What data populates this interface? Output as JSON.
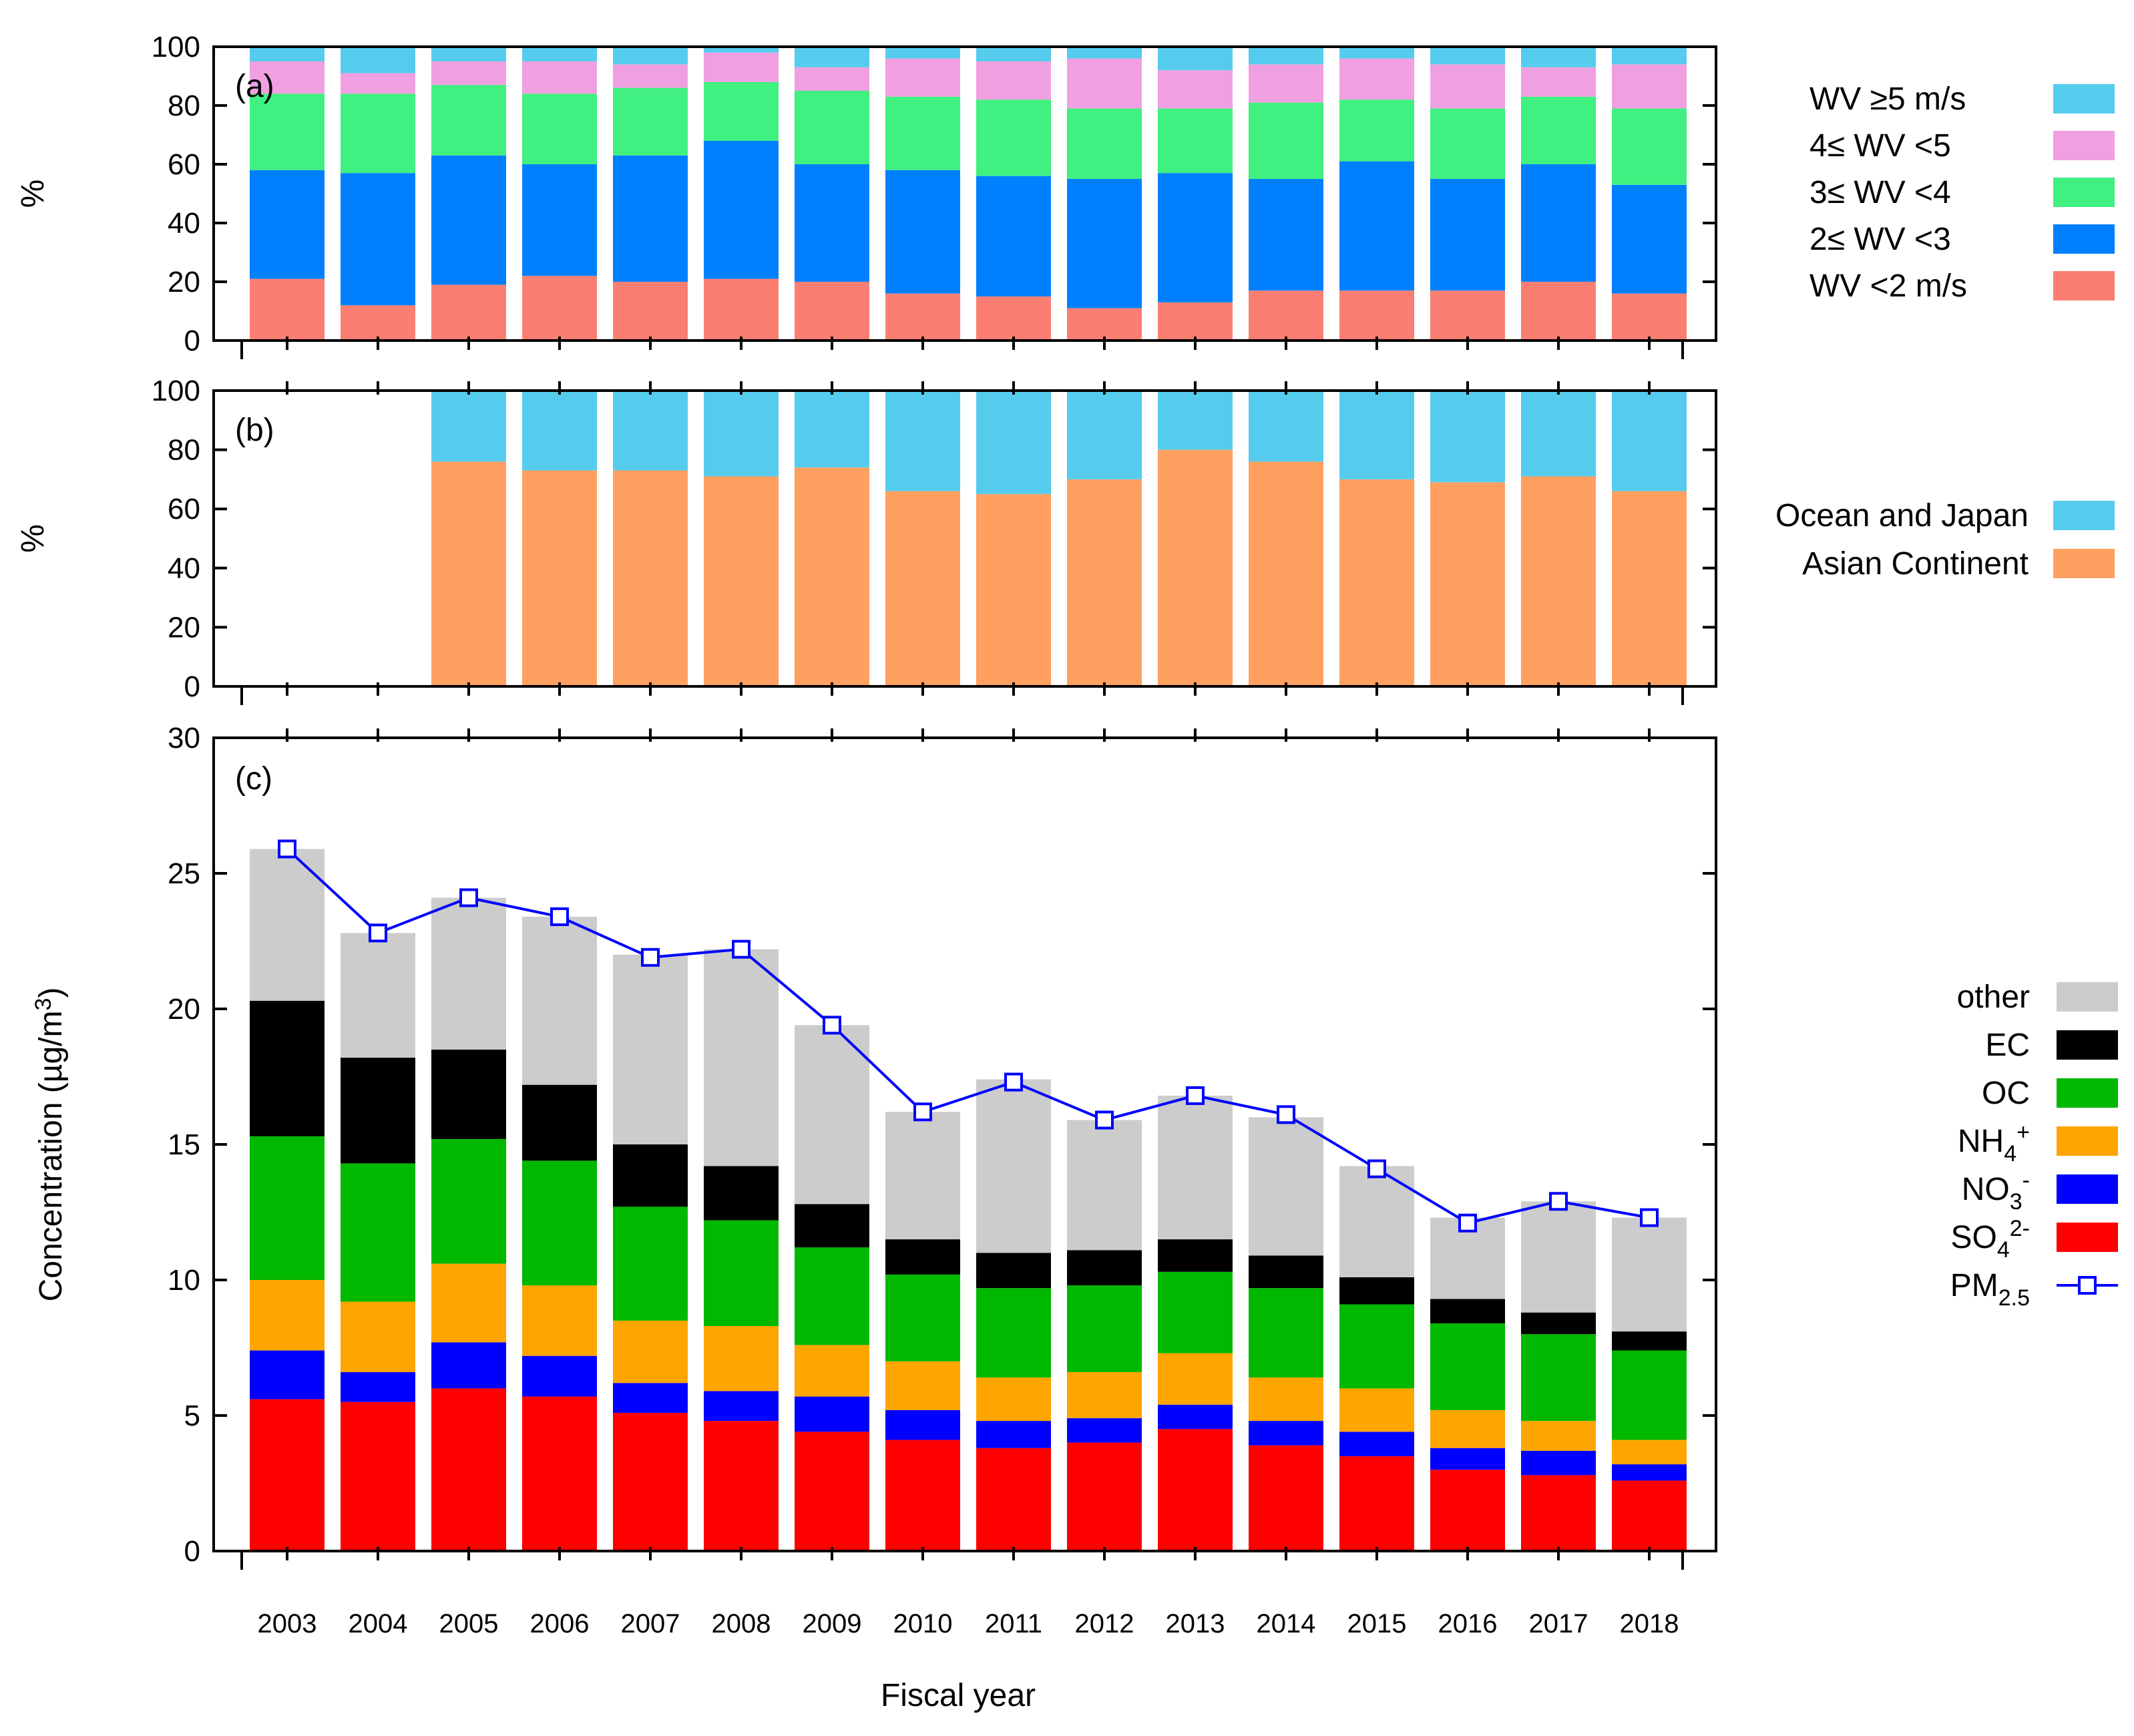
{
  "x_title": "Fiscal year",
  "chart_data": [
    {
      "type": "bar",
      "stacked": true,
      "panel_label": "(a)",
      "ylabel": "%",
      "ylim": [
        0,
        100
      ],
      "yticks": [
        "0",
        "20",
        "40",
        "60",
        "80",
        "100"
      ],
      "categories": [
        "2003",
        "2004",
        "2005",
        "2006",
        "2007",
        "2008",
        "2009",
        "2010",
        "2011",
        "2012",
        "2013",
        "2014",
        "2015",
        "2016",
        "2017",
        "2018"
      ],
      "series": [
        {
          "name": "WV <2 m/s",
          "color": "#fa7f72",
          "values": [
            21,
            12,
            19,
            22,
            20,
            21,
            20,
            16,
            15,
            11,
            13,
            17,
            17,
            17,
            20,
            16
          ]
        },
        {
          "name": "2≤ WV <3",
          "color": "#0080ff",
          "values": [
            37,
            45,
            44,
            38,
            43,
            47,
            40,
            42,
            41,
            44,
            44,
            38,
            44,
            38,
            40,
            37
          ]
        },
        {
          "name": "3≤ WV <4",
          "color": "#40f080",
          "values": [
            26,
            27,
            24,
            24,
            23,
            20,
            25,
            25,
            26,
            24,
            22,
            26,
            21,
            24,
            23,
            26
          ]
        },
        {
          "name": "4≤ WV <5",
          "color": "#f0a0e0",
          "values": [
            11,
            7,
            8,
            11,
            8,
            10,
            8,
            13,
            13,
            17,
            13,
            13,
            14,
            15,
            10,
            15
          ]
        },
        {
          "name": "WV ≥5 m/s",
          "color": "#55ccee",
          "values": [
            5,
            9,
            5,
            5,
            6,
            2,
            7,
            4,
            5,
            4,
            8,
            6,
            4,
            6,
            7,
            6
          ]
        }
      ]
    },
    {
      "type": "bar",
      "stacked": true,
      "panel_label": "(b)",
      "ylabel": "%",
      "ylim": [
        0,
        100
      ],
      "yticks": [
        "0",
        "20",
        "40",
        "60",
        "80",
        "100"
      ],
      "categories": [
        "2003",
        "2004",
        "2005",
        "2006",
        "2007",
        "2008",
        "2009",
        "2010",
        "2011",
        "2012",
        "2013",
        "2014",
        "2015",
        "2016",
        "2017",
        "2018"
      ],
      "series": [
        {
          "name": "Asian Continent",
          "color": "#ffa060",
          "values": [
            0,
            0,
            76,
            73,
            73,
            71,
            74,
            66,
            65,
            70,
            80,
            76,
            70,
            69,
            71,
            66
          ]
        },
        {
          "name": "Ocean and Japan",
          "color": "#55ccee",
          "values": [
            0,
            0,
            24,
            27,
            27,
            29,
            26,
            34,
            35,
            30,
            20,
            24,
            30,
            31,
            29,
            34
          ]
        }
      ]
    },
    {
      "type": "bar+line",
      "stacked": true,
      "panel_label": "(c)",
      "ylabel": "Concentration (µg/m³)",
      "ylim": [
        0,
        30
      ],
      "yticks": [
        "0",
        "5",
        "10",
        "15",
        "20",
        "25",
        "30"
      ],
      "categories": [
        "2003",
        "2004",
        "2005",
        "2006",
        "2007",
        "2008",
        "2009",
        "2010",
        "2011",
        "2012",
        "2013",
        "2014",
        "2015",
        "2016",
        "2017",
        "2018"
      ],
      "series": [
        {
          "name": "SO4 2-",
          "label": {
            "base": "SO",
            "sub": "4",
            "sup": "2-"
          },
          "color": "#ff0000",
          "values": [
            5.6,
            5.5,
            6.0,
            5.7,
            5.1,
            4.8,
            4.4,
            4.1,
            3.8,
            4.0,
            4.5,
            3.9,
            3.5,
            3.0,
            2.8,
            2.6
          ]
        },
        {
          "name": "NO3 -",
          "label": {
            "base": "NO",
            "sub": "3",
            "sup": "-"
          },
          "color": "#0000ff",
          "values": [
            1.8,
            1.1,
            1.7,
            1.5,
            1.1,
            1.1,
            1.3,
            1.1,
            1.0,
            0.9,
            0.9,
            0.9,
            0.9,
            0.8,
            0.9,
            0.6
          ]
        },
        {
          "name": "NH4 +",
          "label": {
            "base": "NH",
            "sub": "4",
            "sup": "+"
          },
          "color": "#ffa500",
          "values": [
            2.6,
            2.6,
            2.9,
            2.6,
            2.3,
            2.4,
            1.9,
            1.8,
            1.6,
            1.7,
            1.9,
            1.6,
            1.6,
            1.4,
            1.1,
            0.9
          ]
        },
        {
          "name": "OC",
          "label": {
            "base": "OC",
            "sub": "",
            "sup": ""
          },
          "color": "#00b800",
          "values": [
            5.3,
            5.1,
            4.6,
            4.6,
            4.2,
            3.9,
            3.6,
            3.2,
            3.3,
            3.2,
            3.0,
            3.3,
            3.1,
            3.2,
            3.2,
            3.3
          ]
        },
        {
          "name": "EC",
          "label": {
            "base": "EC",
            "sub": "",
            "sup": ""
          },
          "color": "#000000",
          "values": [
            5.0,
            3.9,
            3.3,
            2.8,
            2.3,
            2.0,
            1.6,
            1.3,
            1.3,
            1.3,
            1.2,
            1.2,
            1.0,
            0.9,
            0.8,
            0.7
          ]
        },
        {
          "name": "other",
          "label": {
            "base": "other",
            "sub": "",
            "sup": ""
          },
          "color": "#cccccc",
          "values": [
            5.6,
            4.6,
            5.6,
            6.2,
            7.0,
            8.0,
            6.6,
            4.7,
            6.4,
            4.8,
            5.3,
            5.1,
            4.1,
            3.0,
            4.1,
            4.2
          ]
        }
      ],
      "line": {
        "name": "PM2.5",
        "label": {
          "base": "PM",
          "sub": "2.5"
        },
        "color": "#0000ff",
        "values": [
          25.9,
          22.8,
          24.1,
          23.4,
          21.9,
          22.2,
          19.4,
          16.2,
          17.3,
          15.9,
          16.8,
          16.1,
          14.1,
          12.1,
          12.9,
          12.3
        ]
      }
    }
  ]
}
